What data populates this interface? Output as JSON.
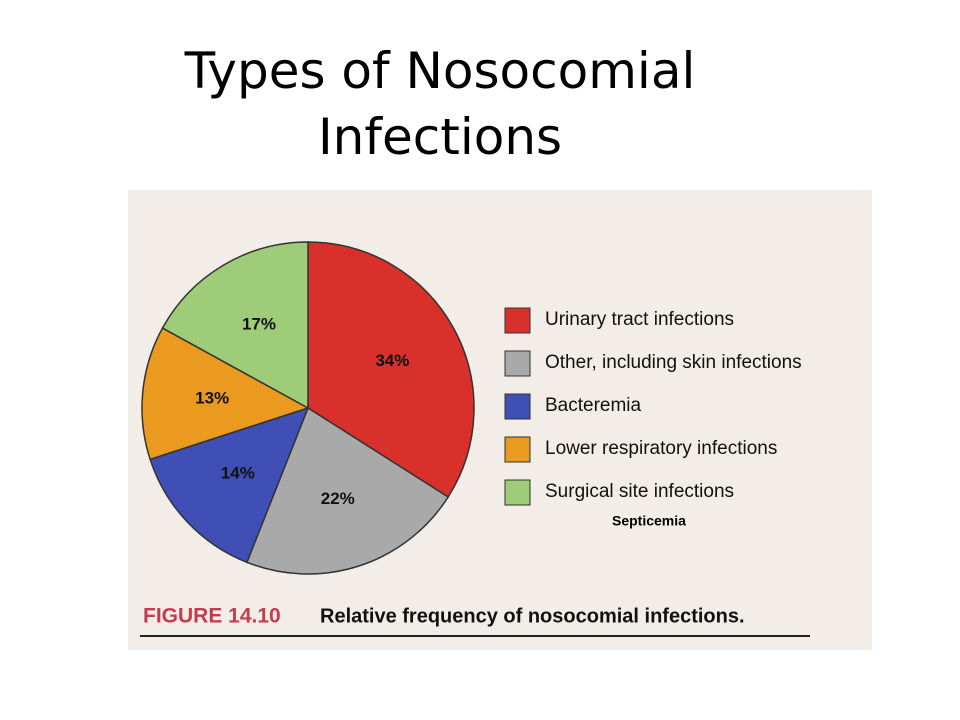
{
  "chart_data": {
    "type": "pie",
    "title": "Types of Nosocomial Infections",
    "categories": [
      "Urinary tract infections",
      "Other, including skin infections",
      "Bacteremia",
      "Lower respiratory infections",
      "Surgical site infections"
    ],
    "values": [
      34,
      22,
      14,
      13,
      17
    ],
    "value_labels": [
      "34%",
      "22%",
      "14%",
      "13%",
      "17%"
    ],
    "colors": [
      "#d9302c",
      "#a9a9a9",
      "#3f4fb5",
      "#e99a1f",
      "#9fcc78"
    ],
    "figure_number": "FIGURE 14.10",
    "caption": "Relative frequency of nosocomial infections.",
    "annotation": "Septicemia"
  }
}
